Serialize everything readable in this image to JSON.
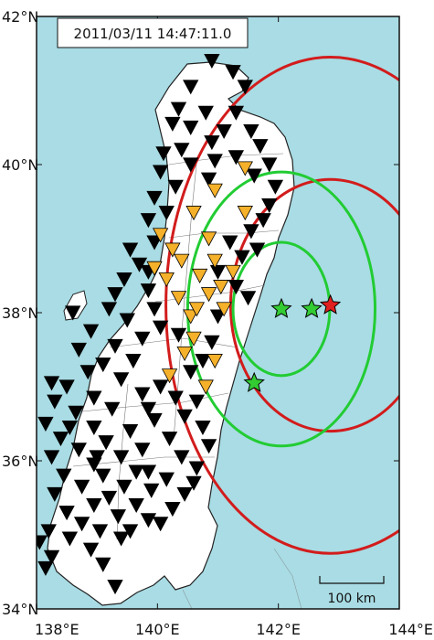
{
  "timestamp": "2011/03/11 14:47:11.0",
  "axes": {
    "lat_labels": [
      {
        "text": "42°N",
        "lat": 42
      },
      {
        "text": "40°N",
        "lat": 40
      },
      {
        "text": "38°N",
        "lat": 38
      },
      {
        "text": "36°N",
        "lat": 36
      },
      {
        "text": "34°N",
        "lat": 34
      }
    ],
    "lon_labels": [
      {
        "text": "138°E",
        "lon": 138
      },
      {
        "text": "140°E",
        "lon": 140
      },
      {
        "text": "142°E",
        "lon": 142
      },
      {
        "text": "144°E",
        "lon": 144
      }
    ]
  },
  "scale_bar": {
    "label": "100 km",
    "km": 100
  },
  "colors": {
    "sea": "#a9dce4",
    "land": "#ffffff",
    "coast": "#222222",
    "red_circle": "#d21c1c",
    "green_circle": "#22cc33",
    "station_black": "#000000",
    "station_yellow": "#f5b12a",
    "epicenter_red": "#e02020",
    "epicenter_green": "#33cc33"
  },
  "epicenters": [
    {
      "lon": 142.86,
      "lat": 38.1,
      "color": "red"
    },
    {
      "lon": 142.55,
      "lat": 38.05,
      "color": "green"
    },
    {
      "lon": 142.05,
      "lat": 38.05,
      "color": "green"
    },
    {
      "lon": 141.6,
      "lat": 37.05,
      "color": "green"
    }
  ],
  "circles": [
    {
      "center": {
        "lon": 142.86,
        "lat": 38.1
      },
      "r_lon": 2.72,
      "r_lat": 3.35,
      "color": "red"
    },
    {
      "center": {
        "lon": 142.86,
        "lat": 38.1
      },
      "r_lon": 1.65,
      "r_lat": 1.7,
      "color": "red"
    },
    {
      "center": {
        "lon": 142.05,
        "lat": 38.05
      },
      "r_lon": 1.55,
      "r_lat": 1.85,
      "color": "green"
    },
    {
      "center": {
        "lon": 142.05,
        "lat": 38.05
      },
      "r_lon": 0.8,
      "r_lat": 0.9,
      "color": "green"
    }
  ],
  "stations_yellow": [
    [
      141.45,
      39.95
    ],
    [
      140.95,
      39.65
    ],
    [
      140.6,
      39.35
    ],
    [
      141.45,
      39.35
    ],
    [
      140.05,
      39.05
    ],
    [
      140.85,
      39.0
    ],
    [
      140.95,
      38.7
    ],
    [
      140.4,
      38.7
    ],
    [
      139.95,
      38.6
    ],
    [
      140.7,
      38.5
    ],
    [
      140.15,
      38.45
    ],
    [
      141.05,
      38.35
    ],
    [
      140.85,
      38.25
    ],
    [
      140.35,
      38.2
    ],
    [
      141.1,
      38.05
    ],
    [
      140.55,
      37.95
    ],
    [
      140.6,
      37.65
    ],
    [
      140.45,
      37.45
    ],
    [
      140.95,
      37.35
    ],
    [
      140.2,
      37.15
    ],
    [
      140.8,
      37.0
    ],
    [
      140.25,
      38.85
    ],
    [
      141.25,
      38.55
    ],
    [
      140.65,
      38.05
    ]
  ],
  "stations_black": [
    [
      140.9,
      41.4
    ],
    [
      141.25,
      41.25
    ],
    [
      141.45,
      41.05
    ],
    [
      140.55,
      41.05
    ],
    [
      140.35,
      40.75
    ],
    [
      140.8,
      40.7
    ],
    [
      141.3,
      40.7
    ],
    [
      140.25,
      40.55
    ],
    [
      140.55,
      40.5
    ],
    [
      141.1,
      40.45
    ],
    [
      141.55,
      40.45
    ],
    [
      140.9,
      40.3
    ],
    [
      141.7,
      40.25
    ],
    [
      140.4,
      40.2
    ],
    [
      140.1,
      40.15
    ],
    [
      141.3,
      40.1
    ],
    [
      141.85,
      40.0
    ],
    [
      140.55,
      40.0
    ],
    [
      140.05,
      39.9
    ],
    [
      141.6,
      39.85
    ],
    [
      140.85,
      39.8
    ],
    [
      141.95,
      39.7
    ],
    [
      140.3,
      39.7
    ],
    [
      139.95,
      39.55
    ],
    [
      141.85,
      39.45
    ],
    [
      140.15,
      39.35
    ],
    [
      141.75,
      39.25
    ],
    [
      139.85,
      39.25
    ],
    [
      141.55,
      39.1
    ],
    [
      139.95,
      38.95
    ],
    [
      141.65,
      38.85
    ],
    [
      141.2,
      38.95
    ],
    [
      139.55,
      38.85
    ],
    [
      141.4,
      38.75
    ],
    [
      139.7,
      38.65
    ],
    [
      141.0,
      38.55
    ],
    [
      139.45,
      38.45
    ],
    [
      141.3,
      38.35
    ],
    [
      139.85,
      38.3
    ],
    [
      139.3,
      38.25
    ],
    [
      141.5,
      38.2
    ],
    [
      139.95,
      38.05
    ],
    [
      139.2,
      38.05
    ],
    [
      141.0,
      37.95
    ],
    [
      138.6,
      38.0
    ],
    [
      139.5,
      37.9
    ],
    [
      140.05,
      37.8
    ],
    [
      138.9,
      37.75
    ],
    [
      139.75,
      37.65
    ],
    [
      140.9,
      37.6
    ],
    [
      139.3,
      37.55
    ],
    [
      138.7,
      37.5
    ],
    [
      140.75,
      37.35
    ],
    [
      139.6,
      37.35
    ],
    [
      139.1,
      37.3
    ],
    [
      138.85,
      37.2
    ],
    [
      140.55,
      37.2
    ],
    [
      139.4,
      37.1
    ],
    [
      138.25,
      37.05
    ],
    [
      138.5,
      37.0
    ],
    [
      140.05,
      37.0
    ],
    [
      139.75,
      36.9
    ],
    [
      138.95,
      36.85
    ],
    [
      140.65,
      36.8
    ],
    [
      138.3,
      36.8
    ],
    [
      139.25,
      36.7
    ],
    [
      138.65,
      36.65
    ],
    [
      140.45,
      36.6
    ],
    [
      139.95,
      36.55
    ],
    [
      140.75,
      36.45
    ],
    [
      138.15,
      36.5
    ],
    [
      138.95,
      36.45
    ],
    [
      139.55,
      36.4
    ],
    [
      138.4,
      36.3
    ],
    [
      140.2,
      36.3
    ],
    [
      139.15,
      36.25
    ],
    [
      140.85,
      36.2
    ],
    [
      138.7,
      36.15
    ],
    [
      139.75,
      36.15
    ],
    [
      138.25,
      36.05
    ],
    [
      139.4,
      36.05
    ],
    [
      140.4,
      36.05
    ],
    [
      138.95,
      35.95
    ],
    [
      140.65,
      35.9
    ],
    [
      139.65,
      35.85
    ],
    [
      138.45,
      35.8
    ],
    [
      139.1,
      35.8
    ],
    [
      140.15,
      35.75
    ],
    [
      138.75,
      35.65
    ],
    [
      139.45,
      35.65
    ],
    [
      139.9,
      35.6
    ],
    [
      140.45,
      35.55
    ],
    [
      138.3,
      35.55
    ],
    [
      139.2,
      35.5
    ],
    [
      138.95,
      35.4
    ],
    [
      139.65,
      35.4
    ],
    [
      140.25,
      35.35
    ],
    [
      138.5,
      35.3
    ],
    [
      139.35,
      35.25
    ],
    [
      138.75,
      35.15
    ],
    [
      139.85,
      35.2
    ],
    [
      138.2,
      35.05
    ],
    [
      139.05,
      35.05
    ],
    [
      138.55,
      34.95
    ],
    [
      139.4,
      34.95
    ],
    [
      138.05,
      34.9
    ],
    [
      138.9,
      34.8
    ],
    [
      138.25,
      34.7
    ],
    [
      139.1,
      34.6
    ],
    [
      138.15,
      34.55
    ],
    [
      139.3,
      34.3
    ],
    [
      139.55,
      35.05
    ],
    [
      139.85,
      35.85
    ],
    [
      140.05,
      35.15
    ],
    [
      140.6,
      35.7
    ],
    [
      139.0,
      36.05
    ],
    [
      138.55,
      36.45
    ],
    [
      139.85,
      36.7
    ],
    [
      140.3,
      36.85
    ],
    [
      140.35,
      37.7
    ],
    [
      139.85,
      38.55
    ],
    [
      140.95,
      40.05
    ]
  ]
}
